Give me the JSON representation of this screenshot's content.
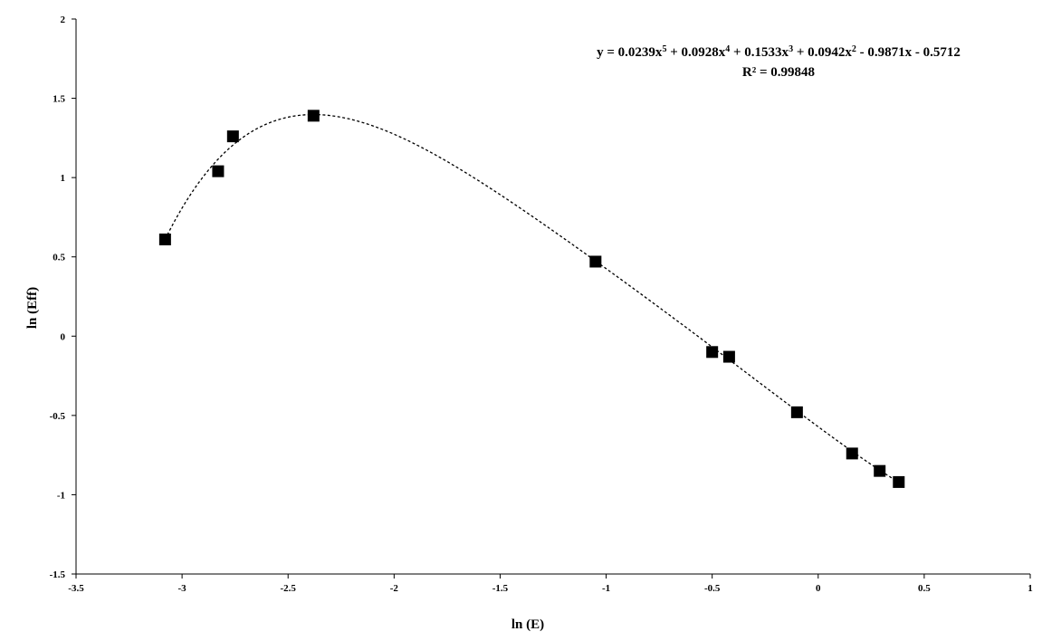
{
  "chart_data": {
    "type": "scatter",
    "title": "",
    "xlabel": "ln (E)",
    "ylabel": "ln (Eff)",
    "xlim": [
      -3.5,
      1
    ],
    "ylim": [
      -1.5,
      2
    ],
    "x_ticks": [
      -3.5,
      -3,
      -2.5,
      -2,
      -1.5,
      -1,
      -0.5,
      0,
      0.5,
      1
    ],
    "x_tick_labels": [
      "-3.5",
      "-3",
      "-2.5",
      "-2",
      "-1.5",
      "-1",
      "-0.5",
      "0",
      "0.5",
      "1"
    ],
    "y_ticks": [
      -1.5,
      -1,
      -0.5,
      0,
      0.5,
      1,
      1.5,
      2
    ],
    "y_tick_labels": [
      "-1.5",
      "-1",
      "-0.5",
      "0",
      "0.5",
      "1",
      "1.5",
      "2"
    ],
    "grid": false,
    "legend": "none",
    "marker": "square",
    "marker_color": "#000000",
    "trendline": {
      "type": "polynomial",
      "order": 5,
      "style": "dotted",
      "coefficients": [
        0.0239,
        0.0928,
        0.1533,
        0.0942,
        -0.9871,
        -0.5712
      ],
      "equation_label": "y = 0.0239x⁵ + 0.0928x⁴ + 0.1533x³ + 0.0942x² - 0.9871x - 0.5712",
      "r2_label": "R² = 0.99848"
    },
    "series": [
      {
        "points": [
          {
            "x": -3.08,
            "y": 0.61
          },
          {
            "x": -2.83,
            "y": 1.04
          },
          {
            "x": -2.76,
            "y": 1.26
          },
          {
            "x": -2.38,
            "y": 1.39
          },
          {
            "x": -1.05,
            "y": 0.47
          },
          {
            "x": -0.5,
            "y": -0.1
          },
          {
            "x": -0.42,
            "y": -0.13
          },
          {
            "x": -0.1,
            "y": -0.48
          },
          {
            "x": 0.16,
            "y": -0.74
          },
          {
            "x": 0.29,
            "y": -0.85
          },
          {
            "x": 0.38,
            "y": -0.92
          }
        ]
      }
    ]
  }
}
